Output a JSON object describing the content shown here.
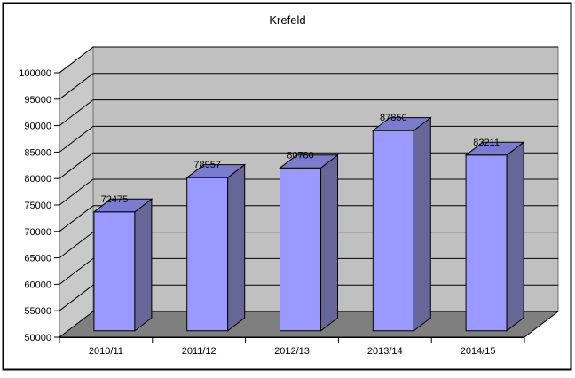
{
  "window": {
    "background": "#FFFFFF",
    "border_color": "#000000"
  },
  "chart_data": {
    "type": "bar",
    "style": "3d-column",
    "title": "Krefeld",
    "categories": [
      "2010/11",
      "2011/12",
      "2012/13",
      "2013/14",
      "2014/15"
    ],
    "values": [
      72475,
      78957,
      80780,
      87850,
      83211
    ],
    "value_labels": [
      "72475",
      "78957",
      "80780",
      "87850",
      "83211"
    ],
    "xlabel": "",
    "ylabel": "",
    "ylim": [
      50000,
      100000
    ],
    "ytick_step": 5000,
    "ytick_labels": [
      "50000",
      "55000",
      "60000",
      "65000",
      "70000",
      "75000",
      "80000",
      "85000",
      "90000",
      "95000",
      "100000"
    ],
    "grid": true,
    "legend": false,
    "colors": {
      "bar_front": "#9999FF",
      "bar_side": "#666699",
      "bar_top": "#7C7CCE",
      "back_wall": "#C0C0C0",
      "side_wall": "#C9C9C9",
      "floor": "#7F7F7F",
      "wall_edge": "#6E6E6E",
      "gridline": "#000000",
      "axis": "#000000",
      "text": "#000000",
      "bar_outline": "#000000"
    }
  }
}
